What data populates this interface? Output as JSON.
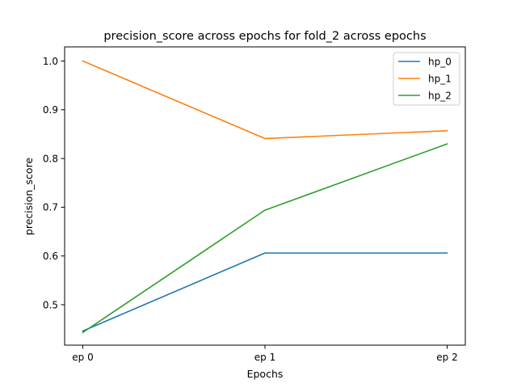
{
  "chart_data": {
    "type": "line",
    "title": "precision_score across epochs for fold_2 across epochs",
    "xlabel": "Epochs",
    "ylabel": "precision_score",
    "categories": [
      "ep 0",
      "ep 1",
      "ep 2"
    ],
    "yticks": [
      0.5,
      0.6,
      0.7,
      0.8,
      0.9,
      1.0
    ],
    "ytick_labels": [
      "0.5",
      "0.6",
      "0.7",
      "0.8",
      "0.9",
      "1.0"
    ],
    "ylim": [
      0.417,
      1.029
    ],
    "grid": false,
    "legend_position": "top-right",
    "series": [
      {
        "name": "hp_0",
        "color": "#1f77b4",
        "values": [
          0.446,
          0.606,
          0.606
        ]
      },
      {
        "name": "hp_1",
        "color": "#ff7f0e",
        "values": [
          1.0,
          0.841,
          0.857
        ]
      },
      {
        "name": "hp_2",
        "color": "#2ca02c",
        "values": [
          0.443,
          0.694,
          0.83
        ]
      }
    ]
  }
}
